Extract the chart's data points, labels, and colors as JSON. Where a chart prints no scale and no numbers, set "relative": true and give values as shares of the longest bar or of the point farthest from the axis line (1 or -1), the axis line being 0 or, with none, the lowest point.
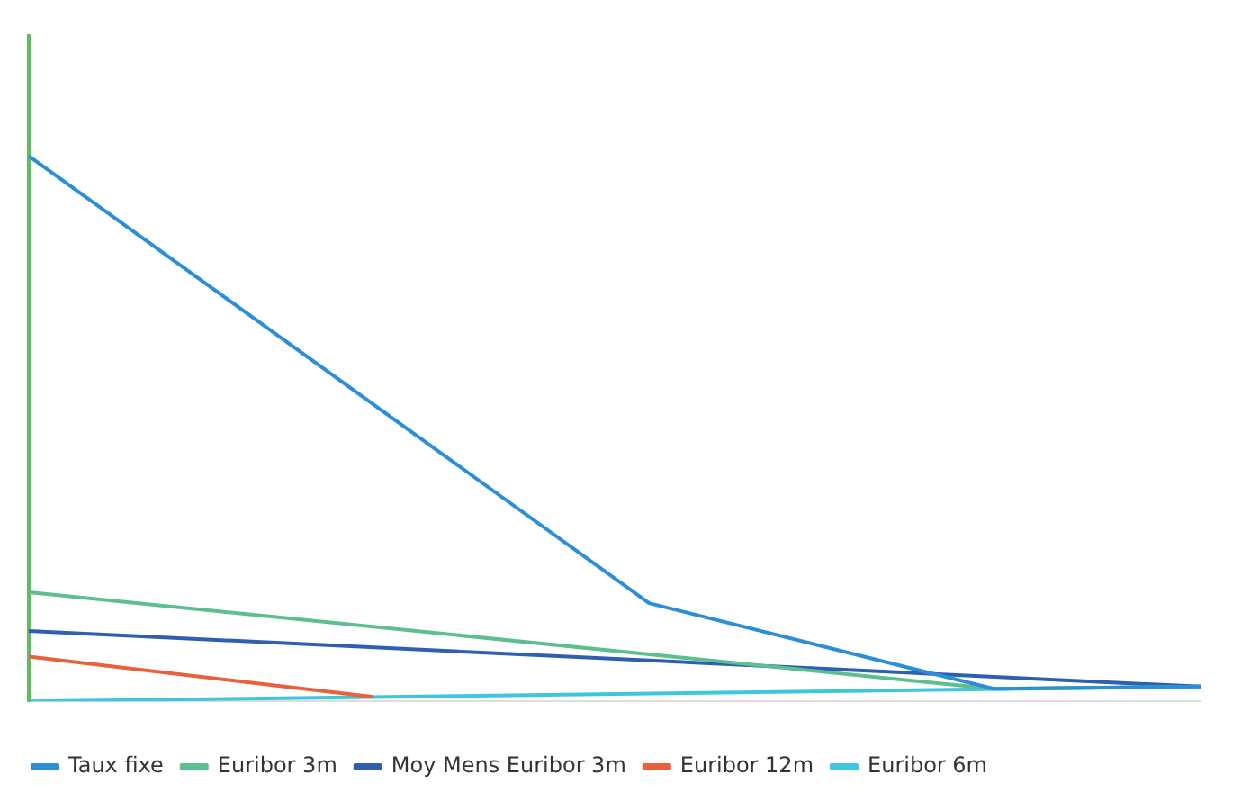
{
  "chart_data": {
    "type": "line",
    "relative": true,
    "categories": [
      null,
      null,
      null,
      null,
      null,
      null,
      null,
      null,
      null,
      null,
      null,
      null,
      null,
      null,
      null,
      null,
      null,
      null
    ],
    "series": [
      {
        "name": "Taux fixe",
        "color": "#2a8fd6",
        "values": [
          1,
          null,
          null,
          null,
          null,
          null,
          null,
          null,
          null,
          0.18,
          null,
          null,
          null,
          null,
          0.023,
          null,
          null,
          0.027
        ]
      },
      {
        "name": "Euribor 3m",
        "color": "#5cbf8f",
        "values": [
          0.2,
          null,
          null,
          null,
          null,
          null,
          null,
          null,
          null,
          null,
          null,
          null,
          null,
          null,
          0.023,
          null,
          null,
          0.027
        ]
      },
      {
        "name": "Moy Mens Euribor 3m",
        "color": "#2e5fb0",
        "values": [
          0.129,
          null,
          null,
          null,
          null,
          null,
          null,
          null,
          null,
          null,
          null,
          null,
          null,
          null,
          null,
          null,
          null,
          0.027
        ]
      },
      {
        "name": "Euribor 12m",
        "color": "#e8603c",
        "values": [
          0.082,
          null,
          null,
          null,
          null,
          0.008,
          null,
          null,
          null,
          null,
          null,
          null,
          null,
          null,
          null,
          null,
          null,
          null
        ]
      },
      {
        "name": "Euribor 6m",
        "color": "#3cc6e0",
        "values": [
          0,
          null,
          null,
          null,
          null,
          null,
          null,
          null,
          null,
          null,
          null,
          null,
          null,
          null,
          null,
          null,
          null,
          0.027
        ]
      }
    ],
    "grid": false,
    "legend": "bottom",
    "marker": "none",
    "line_style": "solid"
  }
}
